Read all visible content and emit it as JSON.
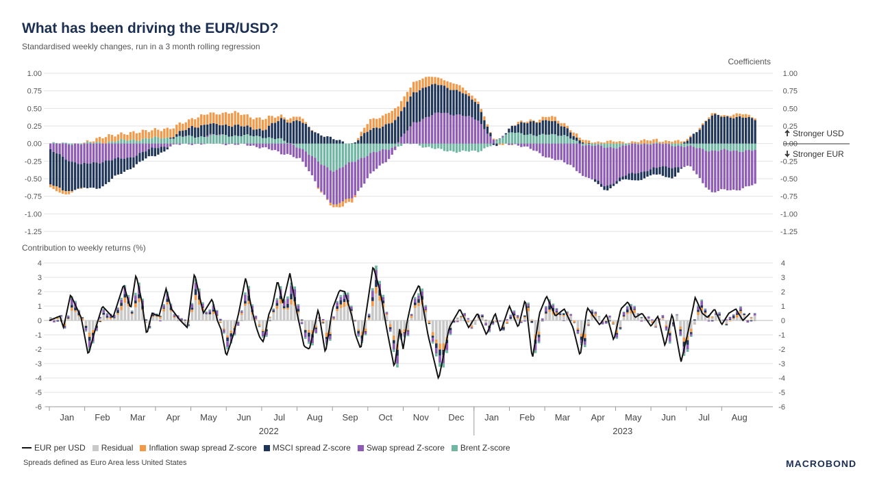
{
  "header": {
    "title": "What has been driving the EUR/USD?",
    "subtitle": "Standardised weekly changes, run in a 3 month rolling regression"
  },
  "footer": {
    "note": "Spreads defined as Euro Area less United States",
    "brand": "MACROBOND"
  },
  "colors": {
    "eur_usd": "#111111",
    "residual": "#c9c9c9",
    "inflation": "#f2994a",
    "msci": "#1f3558",
    "swap": "#8e5bb5",
    "brent": "#6fb7a3"
  },
  "legend": [
    {
      "label": "EUR per USD",
      "key": "eur_usd"
    },
    {
      "label": "Residual",
      "key": "residual"
    },
    {
      "label": "Inflation swap spread Z-score",
      "key": "inflation"
    },
    {
      "label": "MSCI spread Z-score",
      "key": "msci"
    },
    {
      "label": "Swap spread Z-score",
      "key": "swap"
    },
    {
      "label": "Brent Z-score",
      "key": "brent"
    }
  ],
  "chart_data": [
    {
      "type": "bar",
      "stacked": true,
      "title": "Coefficients",
      "ylim": [
        -1.25,
        1.0
      ],
      "yticks": [
        "1.00",
        "0.75",
        "0.50",
        "0.25",
        "0.00",
        "-0.25",
        "-0.50",
        "-0.75",
        "-1.00",
        "-1.25"
      ],
      "annotations": [
        "Stronger USD",
        "Stronger EUR"
      ],
      "knot_t": [
        0,
        0.4,
        0.9,
        1.5,
        2.2,
        3,
        4,
        5,
        6,
        6.5,
        7,
        7.5,
        8,
        8.5,
        9,
        9.6,
        10.2,
        11,
        12,
        12.5,
        13,
        13.6,
        14,
        14.6,
        15,
        15.6,
        16,
        16.5,
        17,
        17.5,
        18,
        18.6,
        19.2,
        19.8
      ],
      "series": [
        {
          "name": "Brent Z-score",
          "values": [
            0,
            0,
            0,
            0.02,
            0.05,
            0.08,
            0.1,
            0.12,
            0.1,
            0.05,
            -0.05,
            -0.25,
            -0.4,
            -0.25,
            -0.15,
            -0.05,
            0,
            -0.1,
            -0.12,
            0.02,
            0.18,
            0.1,
            0.15,
            0.08,
            -0.02,
            -0.05,
            -0.05,
            0,
            0,
            -0.02,
            -0.05,
            -0.1,
            -0.1,
            -0.1
          ]
        },
        {
          "name": "Swap spread Z-score",
          "values": [
            -0.1,
            -0.2,
            -0.3,
            -0.25,
            -0.2,
            -0.05,
            0,
            0,
            -0.05,
            -0.15,
            -0.15,
            -0.35,
            -0.5,
            -0.5,
            -0.3,
            -0.1,
            0.3,
            0.45,
            0.35,
            0,
            0,
            -0.1,
            -0.2,
            -0.3,
            -0.45,
            -0.55,
            -0.45,
            -0.4,
            -0.35,
            -0.3,
            -0.3,
            -0.6,
            -0.55,
            -0.5
          ]
        },
        {
          "name": "MSCI spread Z-score",
          "values": [
            -0.5,
            -0.45,
            -0.35,
            -0.35,
            -0.15,
            -0.1,
            0.15,
            0.15,
            0.1,
            0.3,
            0.32,
            0.15,
            0.05,
            0,
            0.2,
            0.3,
            0.45,
            0.4,
            0.25,
            -0.05,
            0.1,
            0.2,
            0.2,
            0.1,
            0,
            -0.05,
            -0.05,
            -0.1,
            -0.1,
            -0.15,
            0.1,
            0.4,
            0.38,
            0.35
          ]
        },
        {
          "name": "Inflation swap spread Z-score",
          "values": [
            -0.05,
            -0.05,
            0,
            0.08,
            0.1,
            0.12,
            0.12,
            0.18,
            0.15,
            0.05,
            0.05,
            0,
            -0.05,
            -0.05,
            0.15,
            0.15,
            0.15,
            0.1,
            0.05,
            0,
            0,
            0.03,
            0.05,
            0.05,
            0.03,
            0.03,
            0.02,
            0.03,
            0.05,
            0.03,
            0.02,
            0.01,
            0.04,
            0.03
          ]
        }
      ]
    },
    {
      "type": "bar",
      "stacked": true,
      "title": "Contribution to weekly returns (%)",
      "ylim": [
        -6,
        4
      ],
      "yticks": [
        "4",
        "3",
        "2",
        "1",
        "0",
        "-1",
        "-2",
        "-3",
        "-4",
        "-5",
        "-6"
      ],
      "x": [
        "Jan",
        "Feb",
        "Mar",
        "Apr",
        "May",
        "Jun",
        "Jul",
        "Aug",
        "Sep",
        "Oct",
        "Nov",
        "Dec",
        "Jan",
        "Feb",
        "Mar",
        "Apr",
        "May",
        "Jun",
        "Jul",
        "Aug"
      ],
      "x_groups": [
        "2022",
        "2023"
      ],
      "eur_t": [
        0,
        0.3,
        0.4,
        0.6,
        0.9,
        1.1,
        1.3,
        1.5,
        1.8,
        2.1,
        2.3,
        2.45,
        2.6,
        2.75,
        2.9,
        3.1,
        3.3,
        3.45,
        3.7,
        3.9,
        4.1,
        4.35,
        4.6,
        4.75,
        4.85,
        5.0,
        5.2,
        5.35,
        5.55,
        5.7,
        5.85,
        5.95,
        6.05,
        6.2,
        6.3,
        6.45,
        6.6,
        6.8,
        7.0,
        7.2,
        7.35,
        7.6,
        7.8,
        8.0,
        8.2,
        8.35,
        8.55,
        8.65,
        8.8,
        8.95,
        9.15,
        9.35,
        9.55,
        9.75,
        9.9,
        10.0,
        10.1,
        10.25,
        10.45,
        10.7,
        11.0,
        11.3,
        11.6,
        11.85,
        12.1,
        12.35,
        12.6,
        12.75,
        13.0,
        13.25,
        13.45,
        13.65,
        13.85,
        14.05,
        14.3,
        14.55,
        14.8,
        15.0,
        15.2,
        15.4,
        15.55,
        15.75,
        15.95,
        16.15,
        16.35,
        16.55,
        16.75,
        17.0,
        17.2,
        17.4,
        17.6,
        17.85,
        18.05,
        18.25,
        18.45,
        18.6,
        18.8,
        19.0,
        19.2,
        19.4,
        19.6,
        19.8
      ],
      "eur_values": [
        0,
        0.3,
        -0.5,
        1.8,
        0.2,
        -2.4,
        -0.6,
        1.0,
        0.2,
        2.5,
        0.8,
        3.2,
        1.5,
        -1.0,
        0.5,
        0.3,
        2.2,
        0.8,
        0.0,
        -0.5,
        3.3,
        0.5,
        1.5,
        0.0,
        -0.6,
        -2.5,
        -1.0,
        0.5,
        3.0,
        1.0,
        -0.5,
        -1.2,
        -1.5,
        0.4,
        1.0,
        2.8,
        1.2,
        3.3,
        0.5,
        -1.8,
        -2.0,
        0.8,
        -2.3,
        0.8,
        2.1,
        2.0,
        0.3,
        -1.0,
        -2.0,
        0.5,
        3.8,
        2.0,
        -0.8,
        -3.3,
        -0.6,
        -2.0,
        -0.2,
        1.5,
        2.5,
        -1.0,
        -4.1,
        -0.5,
        0.8,
        -0.5,
        0.5,
        -1.0,
        0.5,
        -0.8,
        1.0,
        -0.5,
        1.5,
        -2.7,
        0.5,
        1.7,
        0.3,
        0.8,
        -0.5,
        -2.5,
        0.9,
        0.2,
        -0.3,
        0.4,
        -1.4,
        0.8,
        1.3,
        0.2,
        0.5,
        -0.4,
        0.3,
        -1.8,
        0.5,
        -2.9,
        -0.8,
        1.6,
        0.5,
        0.2,
        0.8,
        -0.3,
        0.5,
        0.8,
        0.0,
        0.5
      ]
    }
  ]
}
